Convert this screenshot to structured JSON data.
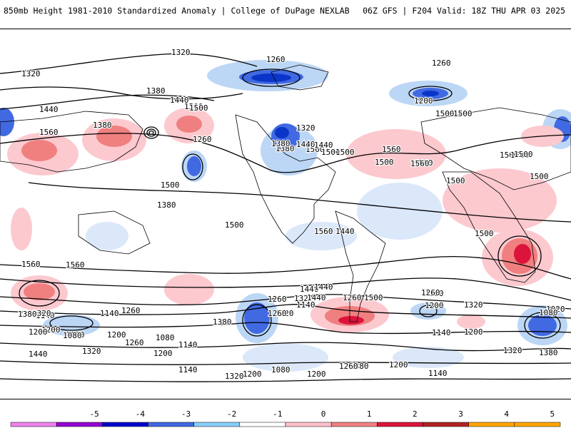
{
  "header": {
    "left_title": "850mb Height 1981-2010 Standardized Anomaly | College of DuPage NEXLAB",
    "right_title": "06Z GFS | F204 Valid: 18Z THU APR 03 2025"
  },
  "colorbar": {
    "ticks": [
      "-5",
      "-4",
      "-3",
      "-2",
      "-1",
      "0",
      "1",
      "2",
      "3",
      "4",
      "5"
    ],
    "colors": [
      "#ee82ee",
      "#9400d3",
      "#0000cd",
      "#4169e1",
      "#87cefa",
      "#ffffff",
      "#ffc0cb",
      "#f08080",
      "#dc143c",
      "#b22222",
      "#ffa500"
    ]
  },
  "contour_labels": [
    "1320",
    "1320",
    "1380",
    "1440",
    "1500",
    "1560",
    "1440",
    "1500",
    "1260",
    "1260",
    "1380",
    "1200",
    "1260",
    "1380",
    "1500",
    "1440",
    "1500",
    "1560",
    "1500",
    "1500",
    "1500",
    "1500",
    "1500",
    "1320",
    "1380",
    "1440",
    "1500",
    "1560",
    "1500",
    "1500",
    "1560",
    "1500",
    "1500",
    "1560",
    "1380",
    "1440",
    "1500",
    "1560",
    "1500",
    "1440",
    "1380",
    "1320",
    "1260",
    "1200",
    "1140",
    "1080",
    "1260",
    "1080",
    "1020",
    "1320",
    "1140",
    "1380",
    "1260",
    "1200",
    "1140",
    "1080",
    "1020",
    "1320",
    "1380",
    "1440",
    "1200",
    "1320",
    "1140",
    "1260",
    "1200",
    "1080",
    "1200",
    "1140",
    "1260",
    "1320",
    "1560",
    "1380",
    "1140",
    "1200",
    "1320",
    "1440",
    "1380",
    "1200",
    "1140",
    "1260",
    "1200",
    "1080",
    "1200",
    "1320",
    "1260",
    "1500",
    "1440"
  ],
  "colors": {
    "negative": "#4169e1",
    "positive": "#f08080"
  }
}
